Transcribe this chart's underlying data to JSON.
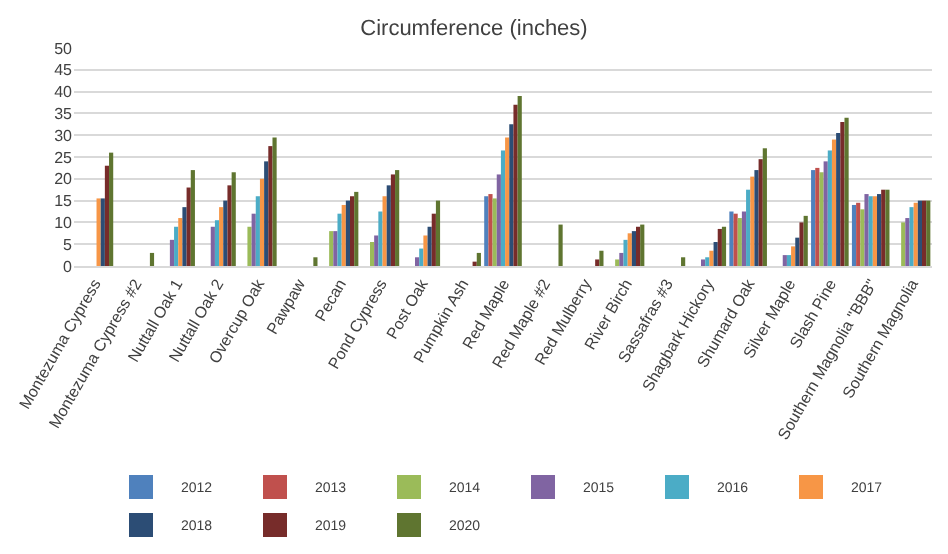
{
  "chart_data": {
    "type": "bar",
    "title": "Circumference (inches)",
    "categories": [
      "Montezuma Cypress",
      "Montezuma Cypress #2",
      "Nuttall Oak 1",
      "Nuttall Oak 2",
      "Overcup Oak",
      "Pawpaw",
      "Pecan",
      "Pond Cypress",
      "Post Oak",
      "Pumpkin Ash",
      "Red Maple",
      "Red Maple #2",
      "Red Mulberry",
      "River Birch",
      "Sassafras #3",
      "Shagbark Hickory",
      "Shumard Oak",
      "Silver Maple",
      "Slash Pine",
      "Southern Magnolia \"BBB\"",
      "Southern Magnolia"
    ],
    "series": [
      {
        "name": "2012",
        "color": "#4f81bd",
        "values": [
          null,
          null,
          null,
          null,
          null,
          null,
          null,
          null,
          null,
          null,
          16,
          null,
          null,
          null,
          null,
          null,
          12.5,
          null,
          22,
          14,
          null
        ]
      },
      {
        "name": "2013",
        "color": "#c0504d",
        "values": [
          null,
          null,
          null,
          null,
          null,
          null,
          null,
          null,
          null,
          null,
          16.5,
          null,
          null,
          null,
          null,
          null,
          12,
          null,
          22.5,
          14.5,
          null
        ]
      },
      {
        "name": "2014",
        "color": "#9bbb59",
        "values": [
          null,
          null,
          null,
          null,
          9,
          null,
          8,
          5.5,
          null,
          null,
          15.5,
          null,
          null,
          1.5,
          null,
          null,
          11,
          null,
          21.5,
          13,
          10
        ]
      },
      {
        "name": "2015",
        "color": "#8064a2",
        "values": [
          null,
          null,
          6,
          9,
          12,
          null,
          8,
          7,
          2,
          null,
          21,
          null,
          null,
          3,
          null,
          1.5,
          12.5,
          2.5,
          24,
          16.5,
          11
        ]
      },
      {
        "name": "2016",
        "color": "#4bacc6",
        "values": [
          null,
          null,
          9,
          10.5,
          16,
          null,
          12,
          12.5,
          4,
          null,
          26.5,
          null,
          null,
          6,
          null,
          2,
          17.5,
          2.5,
          26.5,
          16,
          13.5
        ]
      },
      {
        "name": "2017",
        "color": "#f79646",
        "values": [
          15.5,
          null,
          11,
          13.5,
          20,
          null,
          14,
          16,
          7,
          null,
          29.5,
          null,
          null,
          7.5,
          null,
          3.5,
          20.5,
          4.5,
          29,
          16,
          14.5
        ]
      },
      {
        "name": "2018",
        "color": "#2c4d75",
        "values": [
          15.5,
          null,
          13.5,
          15,
          24,
          null,
          15,
          18.5,
          9,
          null,
          32.5,
          null,
          null,
          8,
          null,
          5.5,
          22,
          6.5,
          30.5,
          16.5,
          15
        ]
      },
      {
        "name": "2019",
        "color": "#772c2a",
        "values": [
          23,
          null,
          18,
          18.5,
          27.5,
          null,
          16,
          21,
          12,
          1,
          37,
          null,
          1.5,
          9,
          null,
          8.5,
          24.5,
          10,
          33,
          17.5,
          15
        ]
      },
      {
        "name": "2020",
        "color": "#5f7530",
        "values": [
          26,
          3,
          22,
          21.5,
          29.5,
          2,
          17,
          22,
          15,
          3,
          39,
          9.5,
          3.5,
          9.5,
          2,
          9,
          27,
          11.5,
          34,
          17.5,
          15
        ]
      }
    ],
    "ylim": [
      0,
      50
    ],
    "yticks": [
      0,
      5,
      10,
      15,
      20,
      25,
      30,
      35,
      40,
      45,
      50
    ],
    "grid": "y",
    "legend": "bottom"
  }
}
